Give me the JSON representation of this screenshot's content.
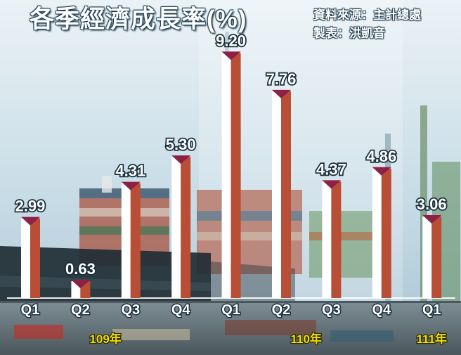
{
  "header": {
    "title": "各季經濟成長率(%)",
    "source": "資料來源：主計總處",
    "author": "製表：洪凱音"
  },
  "chart_data": {
    "type": "bar",
    "title": "各季經濟成長率(%)",
    "xlabel": "",
    "ylabel": "",
    "ylim": [
      0,
      10
    ],
    "grid": false,
    "legend": "none",
    "categories": [
      "Q1",
      "Q2",
      "Q3",
      "Q4",
      "Q1",
      "Q2",
      "Q3",
      "Q4",
      "Q1"
    ],
    "values": [
      2.99,
      0.63,
      4.31,
      5.3,
      9.2,
      7.76,
      4.37,
      4.86,
      3.06
    ],
    "value_labels": [
      "2.99",
      "0.63",
      "4.31",
      "5.30",
      "9.20",
      "7.76",
      "4.37",
      "4.86",
      "3.06"
    ],
    "year_groups": [
      {
        "label": "109年",
        "start": 0,
        "end": 3
      },
      {
        "label": "110年",
        "start": 4,
        "end": 7
      },
      {
        "label": "111年",
        "start": 8,
        "end": 8
      }
    ],
    "colors": {
      "bar_face": "#ffffff",
      "bar_side": "#b84e35",
      "bar_cap": "#8e1f45",
      "value_label": "#ffffff",
      "value_outline": "#1a2f3d",
      "year_label": "#f2dc00"
    }
  }
}
